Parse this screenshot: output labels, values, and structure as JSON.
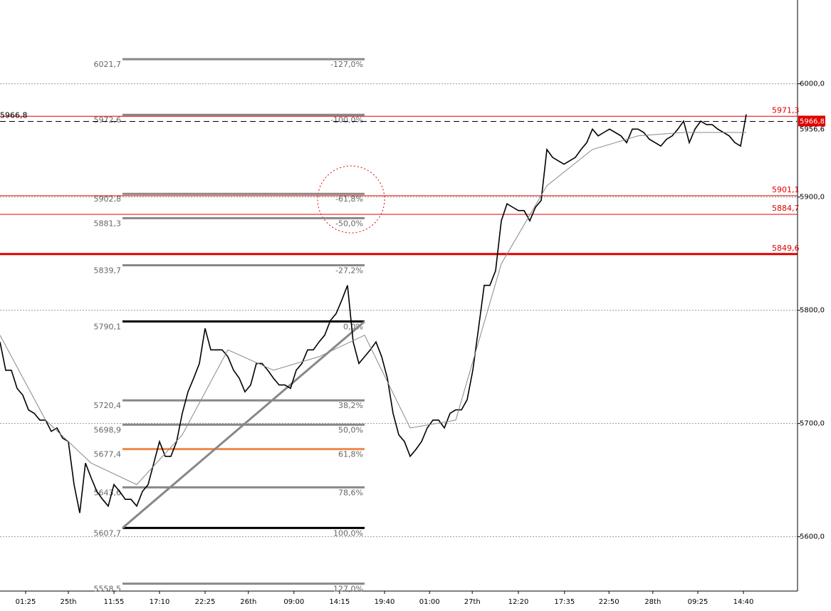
{
  "chart_data": {
    "type": "line",
    "xlim": [
      0,
      140
    ],
    "ylim": [
      5552,
      6074
    ],
    "xticks": [
      {
        "value": 4.5,
        "label": "01:25"
      },
      {
        "value": 12,
        "label": "25th"
      },
      {
        "value": 20,
        "label": "11:55"
      },
      {
        "value": 28,
        "label": "17:10"
      },
      {
        "value": 36,
        "label": "22:25"
      },
      {
        "value": 43.6,
        "label": "26th"
      },
      {
        "value": 51.6,
        "label": "09:00"
      },
      {
        "value": 59.6,
        "label": "14:15"
      },
      {
        "value": 67.5,
        "label": "19:40"
      },
      {
        "value": 75.4,
        "label": "01:00"
      },
      {
        "value": 82.9,
        "label": "27th"
      },
      {
        "value": 91,
        "label": "12:20"
      },
      {
        "value": 99.1,
        "label": "17:35"
      },
      {
        "value": 106.9,
        "label": "22:50"
      },
      {
        "value": 114.6,
        "label": "28th"
      },
      {
        "value": 122.5,
        "label": "09:25"
      },
      {
        "value": 130.5,
        "label": "14:40"
      }
    ],
    "yticks": [
      {
        "value": 6000,
        "label": "6000,0"
      },
      {
        "value": 5900,
        "label": "5900,0"
      },
      {
        "value": 5800,
        "label": "5800,0"
      },
      {
        "value": 5700,
        "label": "5700,0"
      },
      {
        "value": 5600,
        "label": "5600,0"
      }
    ],
    "grid": true,
    "series": [
      {
        "color": "#000000",
        "values": [
          5772,
          5747,
          5747,
          5731,
          5725,
          5712,
          5709,
          5703,
          5703,
          5693,
          5696,
          5687,
          5684,
          5646,
          5621,
          5665,
          5652,
          5640,
          5633,
          5627,
          5646,
          5640,
          5633,
          5633,
          5627,
          5640,
          5646,
          5665,
          5684,
          5671,
          5671,
          5684,
          5709,
          5728,
          5740,
          5753,
          5784,
          5765,
          5765,
          5765,
          5759,
          5747,
          5740,
          5728,
          5734,
          5753,
          5753,
          5747,
          5740,
          5734,
          5734,
          5731,
          5747,
          5753,
          5765,
          5765,
          5772,
          5778,
          5791,
          5797,
          5809,
          5822,
          5772,
          5753,
          5759,
          5765,
          5772,
          5759,
          5740,
          5709,
          5690,
          5684,
          5671,
          5677,
          5684,
          5696,
          5703,
          5703,
          5696,
          5709,
          5712,
          5712,
          5721,
          5747,
          5784,
          5822,
          5822,
          5835,
          5879,
          5894,
          5891,
          5888,
          5888,
          5879,
          5891,
          5897,
          5942,
          5935,
          5932,
          5929,
          5932,
          5935,
          5942,
          5948,
          5960,
          5954,
          5957,
          5960,
          5957,
          5954,
          5948,
          5960,
          5960,
          5957,
          5951,
          5948,
          5945,
          5951,
          5954,
          5960,
          5967,
          5948,
          5960,
          5967,
          5964,
          5964,
          5960,
          5957,
          5954,
          5948,
          5945,
          5973
        ]
      },
      {
        "color": "#888888",
        "x": [
          0,
          8,
          16,
          24,
          32,
          40,
          48,
          56,
          64,
          72,
          80,
          88,
          96,
          104,
          112,
          120,
          131
        ],
        "values": [
          5778,
          5703,
          5665,
          5646,
          5690,
          5765,
          5747,
          5759,
          5778,
          5696,
          5703,
          5841,
          5910,
          5942,
          5954,
          5957,
          5957
        ]
      }
    ],
    "fib_levels": [
      {
        "price": 6021.7,
        "price_label": "6021,7",
        "percent": "-127,0%",
        "color": "#888888"
      },
      {
        "price": 5972.6,
        "price_label": "5972,6",
        "percent": "-100,0%",
        "color": "#888888"
      },
      {
        "price": 5902.8,
        "price_label": "5902,8",
        "percent": "-61,8%",
        "color": "#888888"
      },
      {
        "price": 5881.3,
        "price_label": "5881,3",
        "percent": "-50,0%",
        "color": "#888888"
      },
      {
        "price": 5839.7,
        "price_label": "5839,7",
        "percent": "-27,2%",
        "color": "#888888"
      },
      {
        "price": 5790.1,
        "price_label": "5790,1",
        "percent": "0,0%",
        "color": "#000000"
      },
      {
        "price": 5720.4,
        "price_label": "5720,4",
        "percent": "38,2%",
        "color": "#888888"
      },
      {
        "price": 5698.9,
        "price_label": "5698,9",
        "percent": "50,0%",
        "color": "#888888"
      },
      {
        "price": 5677.4,
        "price_label": "5677,4",
        "percent": "61,8%",
        "color": "#f0884a"
      },
      {
        "price": 5643.6,
        "price_label": "5643,6",
        "percent": "78,6%",
        "color": "#888888"
      },
      {
        "price": 5607.7,
        "price_label": "5607,7",
        "percent": "100,0%",
        "color": "#000000"
      },
      {
        "price": 5558.5,
        "price_label": "5558,5",
        "percent": "127,0%",
        "color": "#888888"
      }
    ],
    "fib_x": [
      21.5,
      64
    ],
    "levels": [
      {
        "price": 5971.3,
        "label": "5971,3",
        "width": 1
      },
      {
        "price": 5901.1,
        "label": "5901,1",
        "width": 1
      },
      {
        "price": 5884.7,
        "label": "5884,7",
        "width": 1
      },
      {
        "price": 5849.6,
        "label": "5849,6",
        "width": 3
      }
    ],
    "level_color": "#e00000",
    "current": {
      "price": 5966.8,
      "label": "5966,8",
      "sub_label": "5956,6"
    }
  }
}
